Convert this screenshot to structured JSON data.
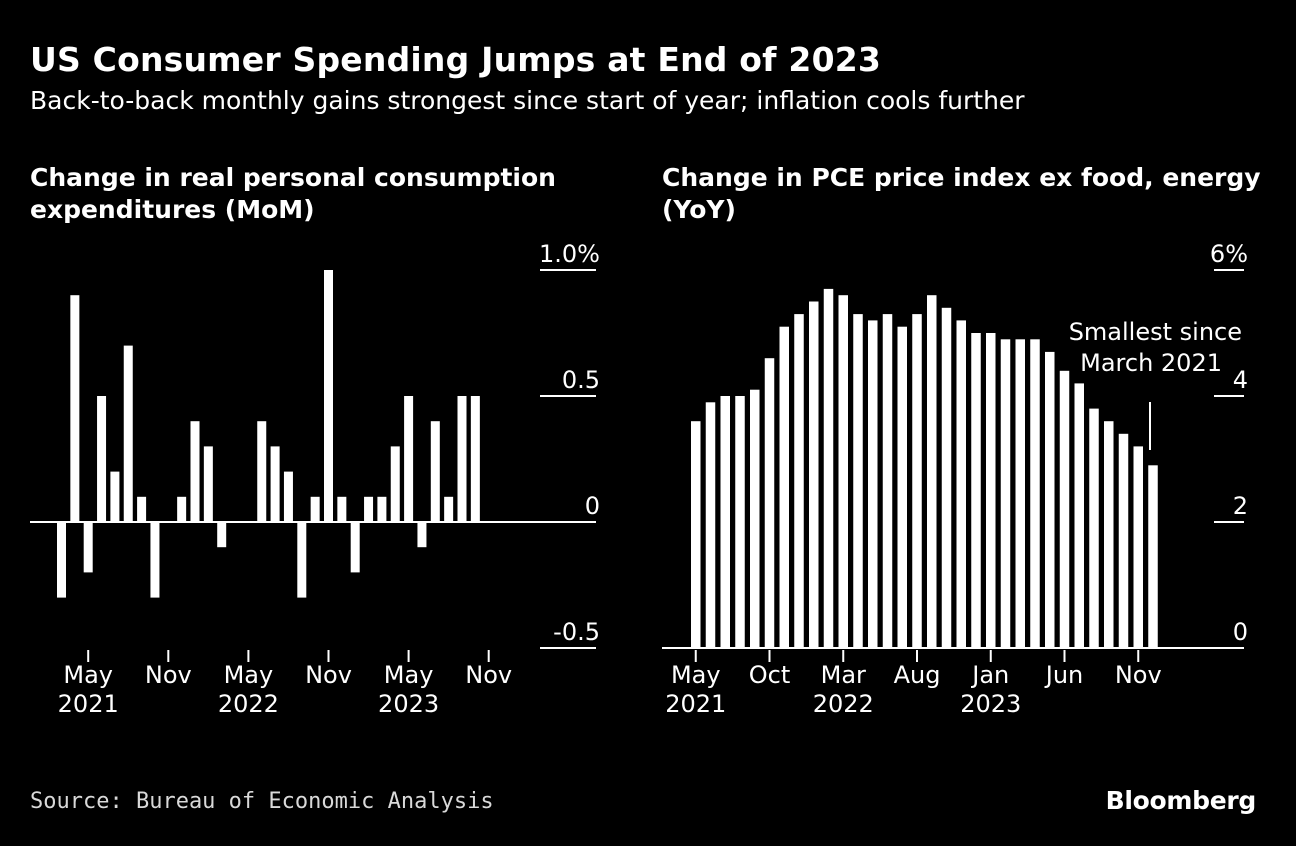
{
  "header": {
    "title": "US Consumer Spending Jumps at End of 2023",
    "subtitle": "Back-to-back monthly gains strongest since start of year; inflation cools further"
  },
  "colors": {
    "background": "#000000",
    "bar": "#ffffff",
    "axis": "#ffffff",
    "text": "#ffffff"
  },
  "chart_data": [
    {
      "type": "bar",
      "title": "Change in real personal consumption expenditures (MoM)",
      "categories": [
        "Mar 2021",
        "Apr 2021",
        "May 2021",
        "Jun 2021",
        "Jul 2021",
        "Aug 2021",
        "Sep 2021",
        "Oct 2021",
        "Nov 2021",
        "Dec 2021",
        "Jan 2022",
        "Feb 2022",
        "Mar 2022",
        "Apr 2022",
        "May 2022",
        "Jun 2022",
        "Jul 2022",
        "Aug 2022",
        "Sep 2022",
        "Oct 2022",
        "Nov 2022",
        "Dec 2022",
        "Jan 2023",
        "Feb 2023",
        "Mar 2023",
        "Apr 2023",
        "May 2023",
        "Jun 2023",
        "Jul 2023",
        "Aug 2023",
        "Sep 2023",
        "Oct 2023",
        "Nov 2023",
        "Dec 2023"
      ],
      "values": [
        -0.3,
        0.9,
        -0.2,
        0.5,
        0.2,
        0.7,
        0.1,
        -0.3,
        0.0,
        0.1,
        0.4,
        0.3,
        -0.1,
        0.0,
        0.0,
        0.4,
        0.3,
        0.2,
        -0.3,
        0.1,
        1.0,
        0.1,
        -0.2,
        0.1,
        0.1,
        0.3,
        0.5,
        -0.1,
        0.4,
        0.1,
        0.5,
        0.5,
        0.0,
        0.0
      ],
      "ylim": [
        -0.5,
        1.0
      ],
      "yticks": [
        1.0,
        0.5,
        0,
        -0.5
      ],
      "ytick_labels": [
        "1.0%",
        "0.5",
        "0",
        "-0.5"
      ],
      "xtick_labels": [
        {
          "month": "May",
          "year": "2021",
          "index": 2
        },
        {
          "month": "Nov",
          "year": "",
          "index": 8
        },
        {
          "month": "May",
          "year": "2022",
          "index": 14
        },
        {
          "month": "Nov",
          "year": "",
          "index": 20
        },
        {
          "month": "May",
          "year": "2023",
          "index": 26
        },
        {
          "month": "Nov",
          "year": "",
          "index": 32
        }
      ],
      "xlabel": "",
      "ylabel": ""
    },
    {
      "type": "bar",
      "title": "Change in PCE price index ex food, energy (YoY)",
      "categories": [
        "May 2021",
        "Jun 2021",
        "Jul 2021",
        "Aug 2021",
        "Sep 2021",
        "Oct 2021",
        "Nov 2021",
        "Dec 2021",
        "Jan 2022",
        "Feb 2022",
        "Mar 2022",
        "Apr 2022",
        "May 2022",
        "Jun 2022",
        "Jul 2022",
        "Aug 2022",
        "Sep 2022",
        "Oct 2022",
        "Nov 2022",
        "Dec 2022",
        "Jan 2023",
        "Feb 2023",
        "Mar 2023",
        "Apr 2023",
        "May 2023",
        "Jun 2023",
        "Jul 2023",
        "Aug 2023",
        "Sep 2023",
        "Oct 2023",
        "Nov 2023",
        "Dec 2023"
      ],
      "values": [
        3.6,
        3.9,
        4.0,
        4.0,
        4.1,
        4.6,
        5.1,
        5.3,
        5.5,
        5.7,
        5.6,
        5.3,
        5.2,
        5.3,
        5.1,
        5.3,
        5.6,
        5.4,
        5.2,
        5.0,
        5.0,
        4.9,
        4.9,
        4.9,
        4.7,
        4.4,
        4.2,
        3.8,
        3.6,
        3.4,
        3.2,
        2.9
      ],
      "ylim": [
        0,
        6
      ],
      "yticks": [
        6,
        4,
        2,
        0
      ],
      "ytick_labels": [
        "6%",
        "4",
        "2",
        "0"
      ],
      "xtick_labels": [
        {
          "month": "May",
          "year": "2021",
          "index": 0
        },
        {
          "month": "Oct",
          "year": "",
          "index": 5
        },
        {
          "month": "Mar",
          "year": "2022",
          "index": 10
        },
        {
          "month": "Aug",
          "year": "",
          "index": 15
        },
        {
          "month": "Jan",
          "year": "2023",
          "index": 20
        },
        {
          "month": "Jun",
          "year": "",
          "index": 25
        },
        {
          "month": "Nov",
          "year": "",
          "index": 30
        }
      ],
      "annotation": {
        "line1": "Smallest since",
        "line2": "March 2021",
        "index": 31
      },
      "xlabel": "",
      "ylabel": ""
    }
  ],
  "footer": {
    "source": "Source: Bureau of Economic Analysis",
    "logo": "Bloomberg"
  }
}
